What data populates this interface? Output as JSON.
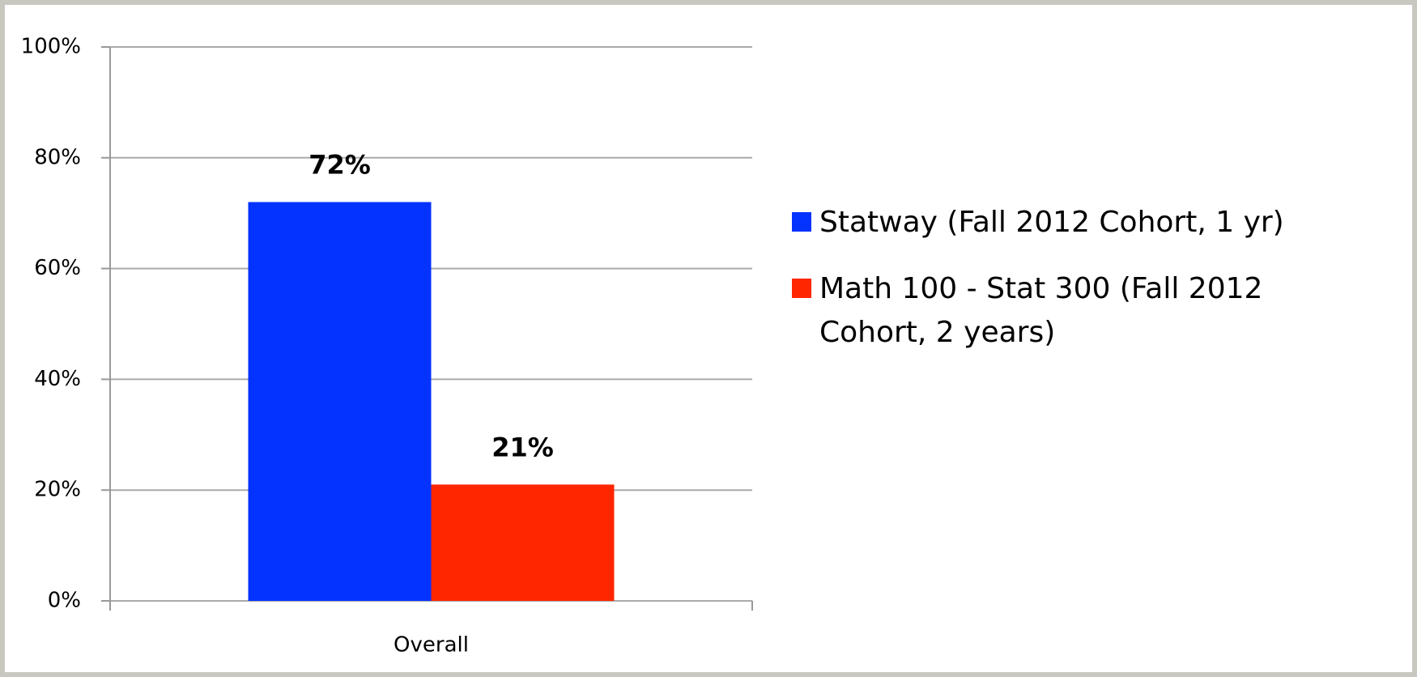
{
  "chart_data": {
    "type": "bar",
    "categories": [
      "Overall"
    ],
    "series": [
      {
        "name": "Statway (Fall 2012 Cohort, 1 yr)",
        "color": "#0433ff",
        "values": [
          72
        ],
        "value_labels": [
          "72%"
        ]
      },
      {
        "name": "Math 100 - Stat 300 (Fall 2012 Cohort, 2 years)",
        "color": "#ff2600",
        "values": [
          21
        ],
        "value_labels": [
          "21%"
        ]
      }
    ],
    "ylim": [
      0,
      100
    ],
    "yticks": [
      {
        "value": 0,
        "label": "0%"
      },
      {
        "value": 20,
        "label": "20%"
      },
      {
        "value": 40,
        "label": "40%"
      },
      {
        "value": 60,
        "label": "60%"
      },
      {
        "value": 80,
        "label": "80%"
      },
      {
        "value": 100,
        "label": "100%"
      }
    ],
    "grid": true,
    "legend": "right"
  }
}
